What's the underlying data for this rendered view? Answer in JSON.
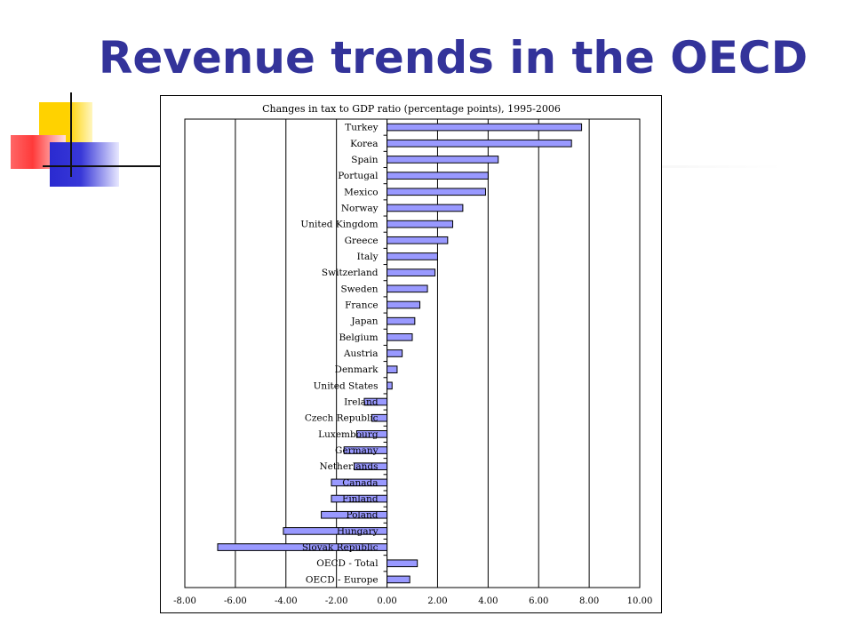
{
  "slide": {
    "title": "Revenue trends in the OECD"
  },
  "colors": {
    "title": "#33339a",
    "bar_fill": "#9999ff",
    "bar_stroke": "#000000"
  },
  "chart_data": {
    "type": "bar",
    "orientation": "horizontal",
    "title": "Changes in tax to GDP ratio (percentage points), 1995-2006",
    "xlabel": "",
    "ylabel": "",
    "xlim": [
      -8,
      10
    ],
    "grid": true,
    "legend": "none",
    "tick_labels": [
      "-8.00",
      "-6.00",
      "-4.00",
      "-2.00",
      "0.00",
      "2.00",
      "4.00",
      "6.00",
      "8.00",
      "10.00"
    ],
    "categories": [
      "Turkey",
      "Korea",
      "Spain",
      "Portugal",
      "Mexico",
      "Norway",
      "United Kingdom",
      "Greece",
      "Italy",
      "Switzerland",
      "Sweden",
      "France",
      "Japan",
      "Belgium",
      "Austria",
      "Denmark",
      "United States",
      "Ireland",
      "Czech Republic",
      "Luxembourg",
      "Germany",
      "Netherlands",
      "Canada",
      "Finland",
      "Poland",
      "Hungary",
      "Slovak Republic",
      "OECD - Total",
      "OECD - Europe"
    ],
    "values": [
      7.7,
      7.3,
      4.4,
      4.0,
      3.9,
      3.0,
      2.6,
      2.4,
      2.0,
      1.9,
      1.6,
      1.3,
      1.1,
      1.0,
      0.6,
      0.4,
      0.2,
      -0.9,
      -0.6,
      -1.2,
      -1.7,
      -1.3,
      -2.2,
      -2.2,
      -2.6,
      -4.1,
      -6.7,
      1.2,
      0.9
    ]
  }
}
